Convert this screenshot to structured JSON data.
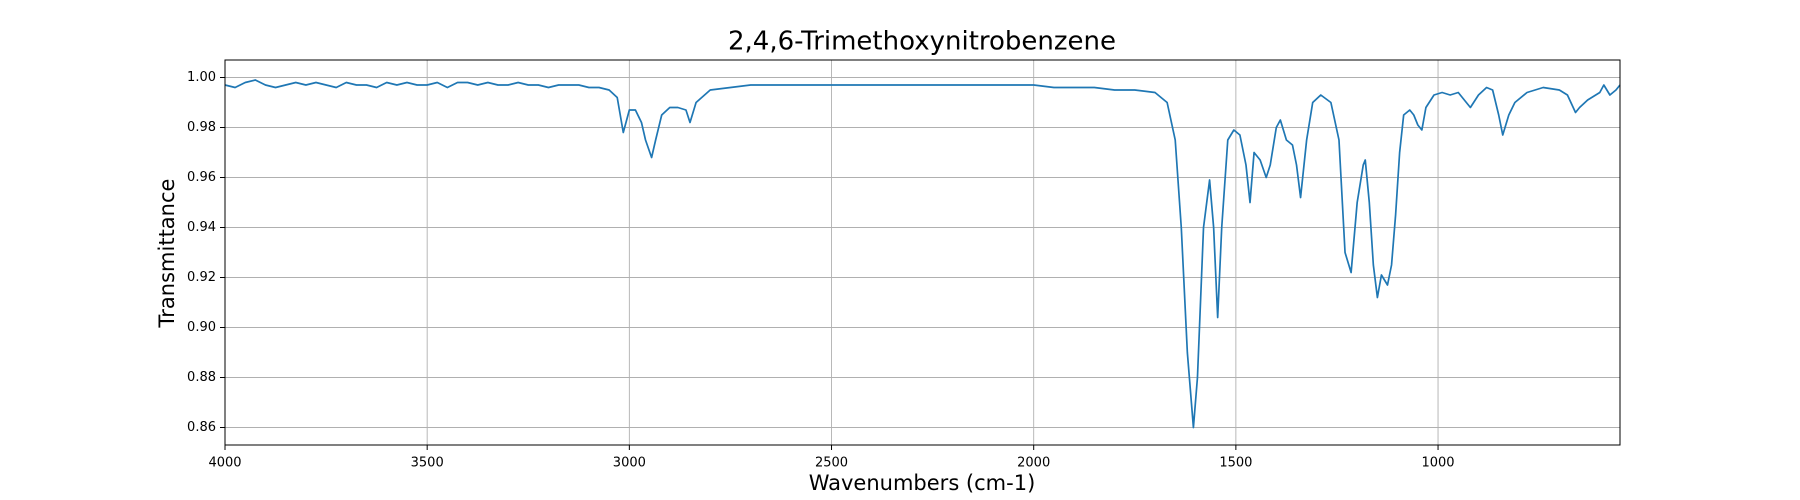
{
  "chart_data": {
    "type": "line",
    "title": "2,4,6-Trimethoxynitrobenzene",
    "xlabel": "Wavenumbers (cm-1)",
    "ylabel": "Transmittance",
    "color": "#1f77b4",
    "grid": true,
    "xlim": [
      4000,
      550
    ],
    "ylim": [
      0.853,
      1.007
    ],
    "xticks": [
      4000,
      3500,
      3000,
      2500,
      2000,
      1500,
      1000
    ],
    "yticks": [
      0.86,
      0.88,
      {
        "value": 0.9,
        "label": "0.90"
      },
      0.92,
      0.94,
      0.96,
      0.98,
      {
        "value": 1,
        "label": "1.00"
      }
    ],
    "x": [
      4000,
      3975,
      3950,
      3925,
      3900,
      3875,
      3850,
      3825,
      3800,
      3775,
      3750,
      3725,
      3700,
      3675,
      3650,
      3625,
      3600,
      3575,
      3550,
      3525,
      3500,
      3475,
      3450,
      3425,
      3400,
      3375,
      3350,
      3325,
      3300,
      3275,
      3250,
      3225,
      3200,
      3175,
      3150,
      3125,
      3100,
      3075,
      3050,
      3030,
      3015,
      3000,
      2985,
      2970,
      2960,
      2945,
      2935,
      2920,
      2900,
      2880,
      2860,
      2850,
      2835,
      2800,
      2750,
      2700,
      2650,
      2600,
      2550,
      2500,
      2450,
      2400,
      2350,
      2300,
      2250,
      2200,
      2150,
      2100,
      2050,
      2000,
      1950,
      1900,
      1850,
      1800,
      1750,
      1700,
      1670,
      1650,
      1635,
      1620,
      1605,
      1595,
      1580,
      1565,
      1555,
      1545,
      1535,
      1520,
      1505,
      1490,
      1475,
      1465,
      1455,
      1440,
      1425,
      1415,
      1400,
      1390,
      1375,
      1360,
      1350,
      1340,
      1325,
      1310,
      1290,
      1265,
      1245,
      1230,
      1215,
      1200,
      1185,
      1180,
      1170,
      1160,
      1150,
      1140,
      1125,
      1115,
      1105,
      1095,
      1085,
      1070,
      1060,
      1050,
      1040,
      1030,
      1010,
      990,
      970,
      950,
      930,
      920,
      900,
      880,
      865,
      850,
      840,
      825,
      810,
      780,
      740,
      700,
      680,
      660,
      650,
      630,
      600,
      590,
      575,
      560,
      550
    ],
    "values": [
      0.997,
      0.996,
      0.998,
      0.999,
      0.997,
      0.996,
      0.997,
      0.998,
      0.997,
      0.998,
      0.997,
      0.996,
      0.998,
      0.997,
      0.997,
      0.996,
      0.998,
      0.997,
      0.998,
      0.997,
      0.997,
      0.998,
      0.996,
      0.998,
      0.998,
      0.997,
      0.998,
      0.997,
      0.997,
      0.998,
      0.997,
      0.997,
      0.996,
      0.997,
      0.997,
      0.997,
      0.996,
      0.996,
      0.995,
      0.992,
      0.978,
      0.987,
      0.987,
      0.982,
      0.975,
      0.968,
      0.975,
      0.985,
      0.988,
      0.988,
      0.987,
      0.982,
      0.99,
      0.995,
      0.996,
      0.997,
      0.997,
      0.997,
      0.997,
      0.997,
      0.997,
      0.997,
      0.997,
      0.997,
      0.997,
      0.997,
      0.997,
      0.997,
      0.997,
      0.997,
      0.996,
      0.996,
      0.996,
      0.995,
      0.995,
      0.994,
      0.99,
      0.975,
      0.94,
      0.89,
      0.86,
      0.88,
      0.94,
      0.959,
      0.94,
      0.904,
      0.94,
      0.975,
      0.979,
      0.977,
      0.965,
      0.95,
      0.97,
      0.967,
      0.96,
      0.965,
      0.98,
      0.983,
      0.975,
      0.973,
      0.965,
      0.952,
      0.975,
      0.99,
      0.993,
      0.99,
      0.975,
      0.93,
      0.922,
      0.95,
      0.965,
      0.967,
      0.95,
      0.925,
      0.912,
      0.921,
      0.917,
      0.925,
      0.945,
      0.97,
      0.985,
      0.987,
      0.985,
      0.981,
      0.979,
      0.988,
      0.993,
      0.994,
      0.993,
      0.994,
      0.99,
      0.988,
      0.993,
      0.996,
      0.995,
      0.985,
      0.977,
      0.985,
      0.99,
      0.994,
      0.996,
      0.995,
      0.993,
      0.986,
      0.988,
      0.991,
      0.994,
      0.997,
      0.993,
      0.995,
      0.997
    ]
  }
}
